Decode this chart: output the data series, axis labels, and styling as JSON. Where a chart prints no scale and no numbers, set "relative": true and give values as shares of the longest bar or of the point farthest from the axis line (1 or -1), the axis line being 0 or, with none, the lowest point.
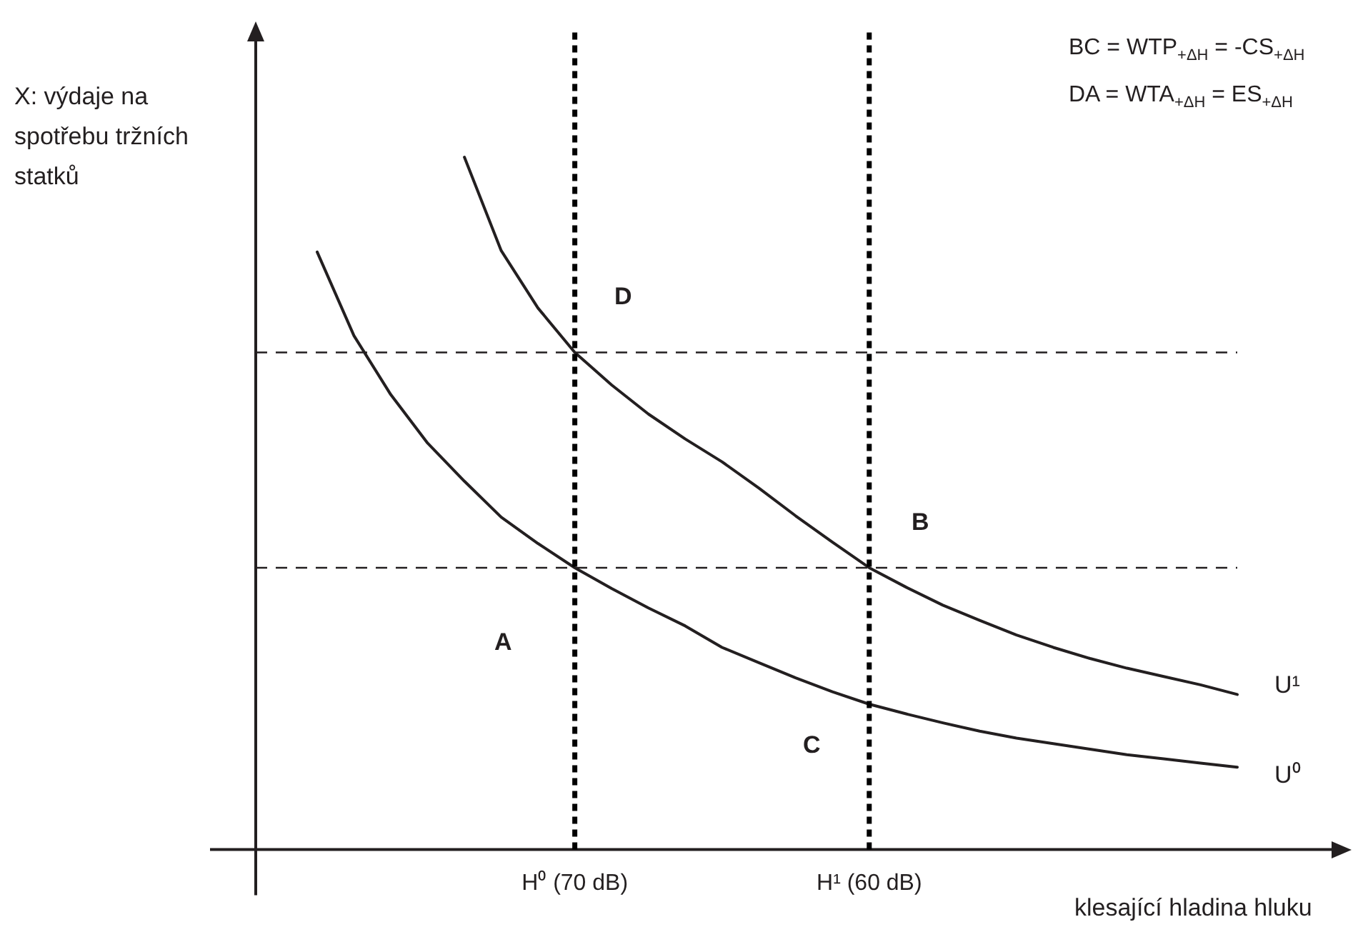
{
  "chart_data": {
    "type": "line",
    "relative": true,
    "xlabel": "klesající hladina hluku",
    "ylabel": "X: výdaje na spotřebu tržních statků",
    "categories": [
      null,
      null,
      null,
      null,
      null,
      null,
      null,
      "H⁰ (70 dB)",
      null,
      null,
      null,
      null,
      null,
      null,
      null,
      "H¹ (60 dB)",
      null,
      null,
      null,
      null,
      null,
      null,
      null,
      null,
      null,
      null
    ],
    "legend": false,
    "marker": "none",
    "line_style": "solid",
    "series": [
      {
        "name": "U¹",
        "color": "#231f20",
        "values": [
          null,
          null,
          null,
          null,
          1.0,
          0.865,
          0.782,
          0.718,
          0.671,
          0.629,
          0.593,
          0.56,
          0.522,
          0.482,
          0.444,
          0.407,
          0.379,
          0.353,
          0.331,
          0.31,
          0.292,
          0.276,
          0.262,
          0.25,
          0.238,
          0.224
        ]
      },
      {
        "name": "U⁰",
        "color": "#231f20",
        "values": [
          0.863,
          0.742,
          0.657,
          0.587,
          0.532,
          0.48,
          0.442,
          0.407,
          0.377,
          0.349,
          0.323,
          0.292,
          0.27,
          0.248,
          0.228,
          0.21,
          0.196,
          0.183,
          0.171,
          0.161,
          0.153,
          0.145,
          0.137,
          0.131,
          0.125,
          0.119
        ]
      }
    ],
    "ref_lines": [
      {
        "axis": "x",
        "value": "H⁰ (70 dB)",
        "color": "#000000",
        "line_style": "dotted"
      },
      {
        "axis": "x",
        "value": "H¹ (60 dB)",
        "color": "#000000",
        "line_style": "dotted"
      },
      {
        "axis": "y",
        "value": 0.718,
        "color": "#231f20",
        "line_style": "dashed"
      },
      {
        "axis": "y",
        "value": 0.407,
        "color": "#231f20",
        "line_style": "dashed"
      }
    ],
    "annotations": [
      "BC = WTP$_{+ΔH}$ = -CS$_{+ΔH}$",
      "DA = WTA$_{+ΔH}$ = ES$_{+ΔH}$",
      "D",
      "B",
      "A",
      "C"
    ]
  }
}
